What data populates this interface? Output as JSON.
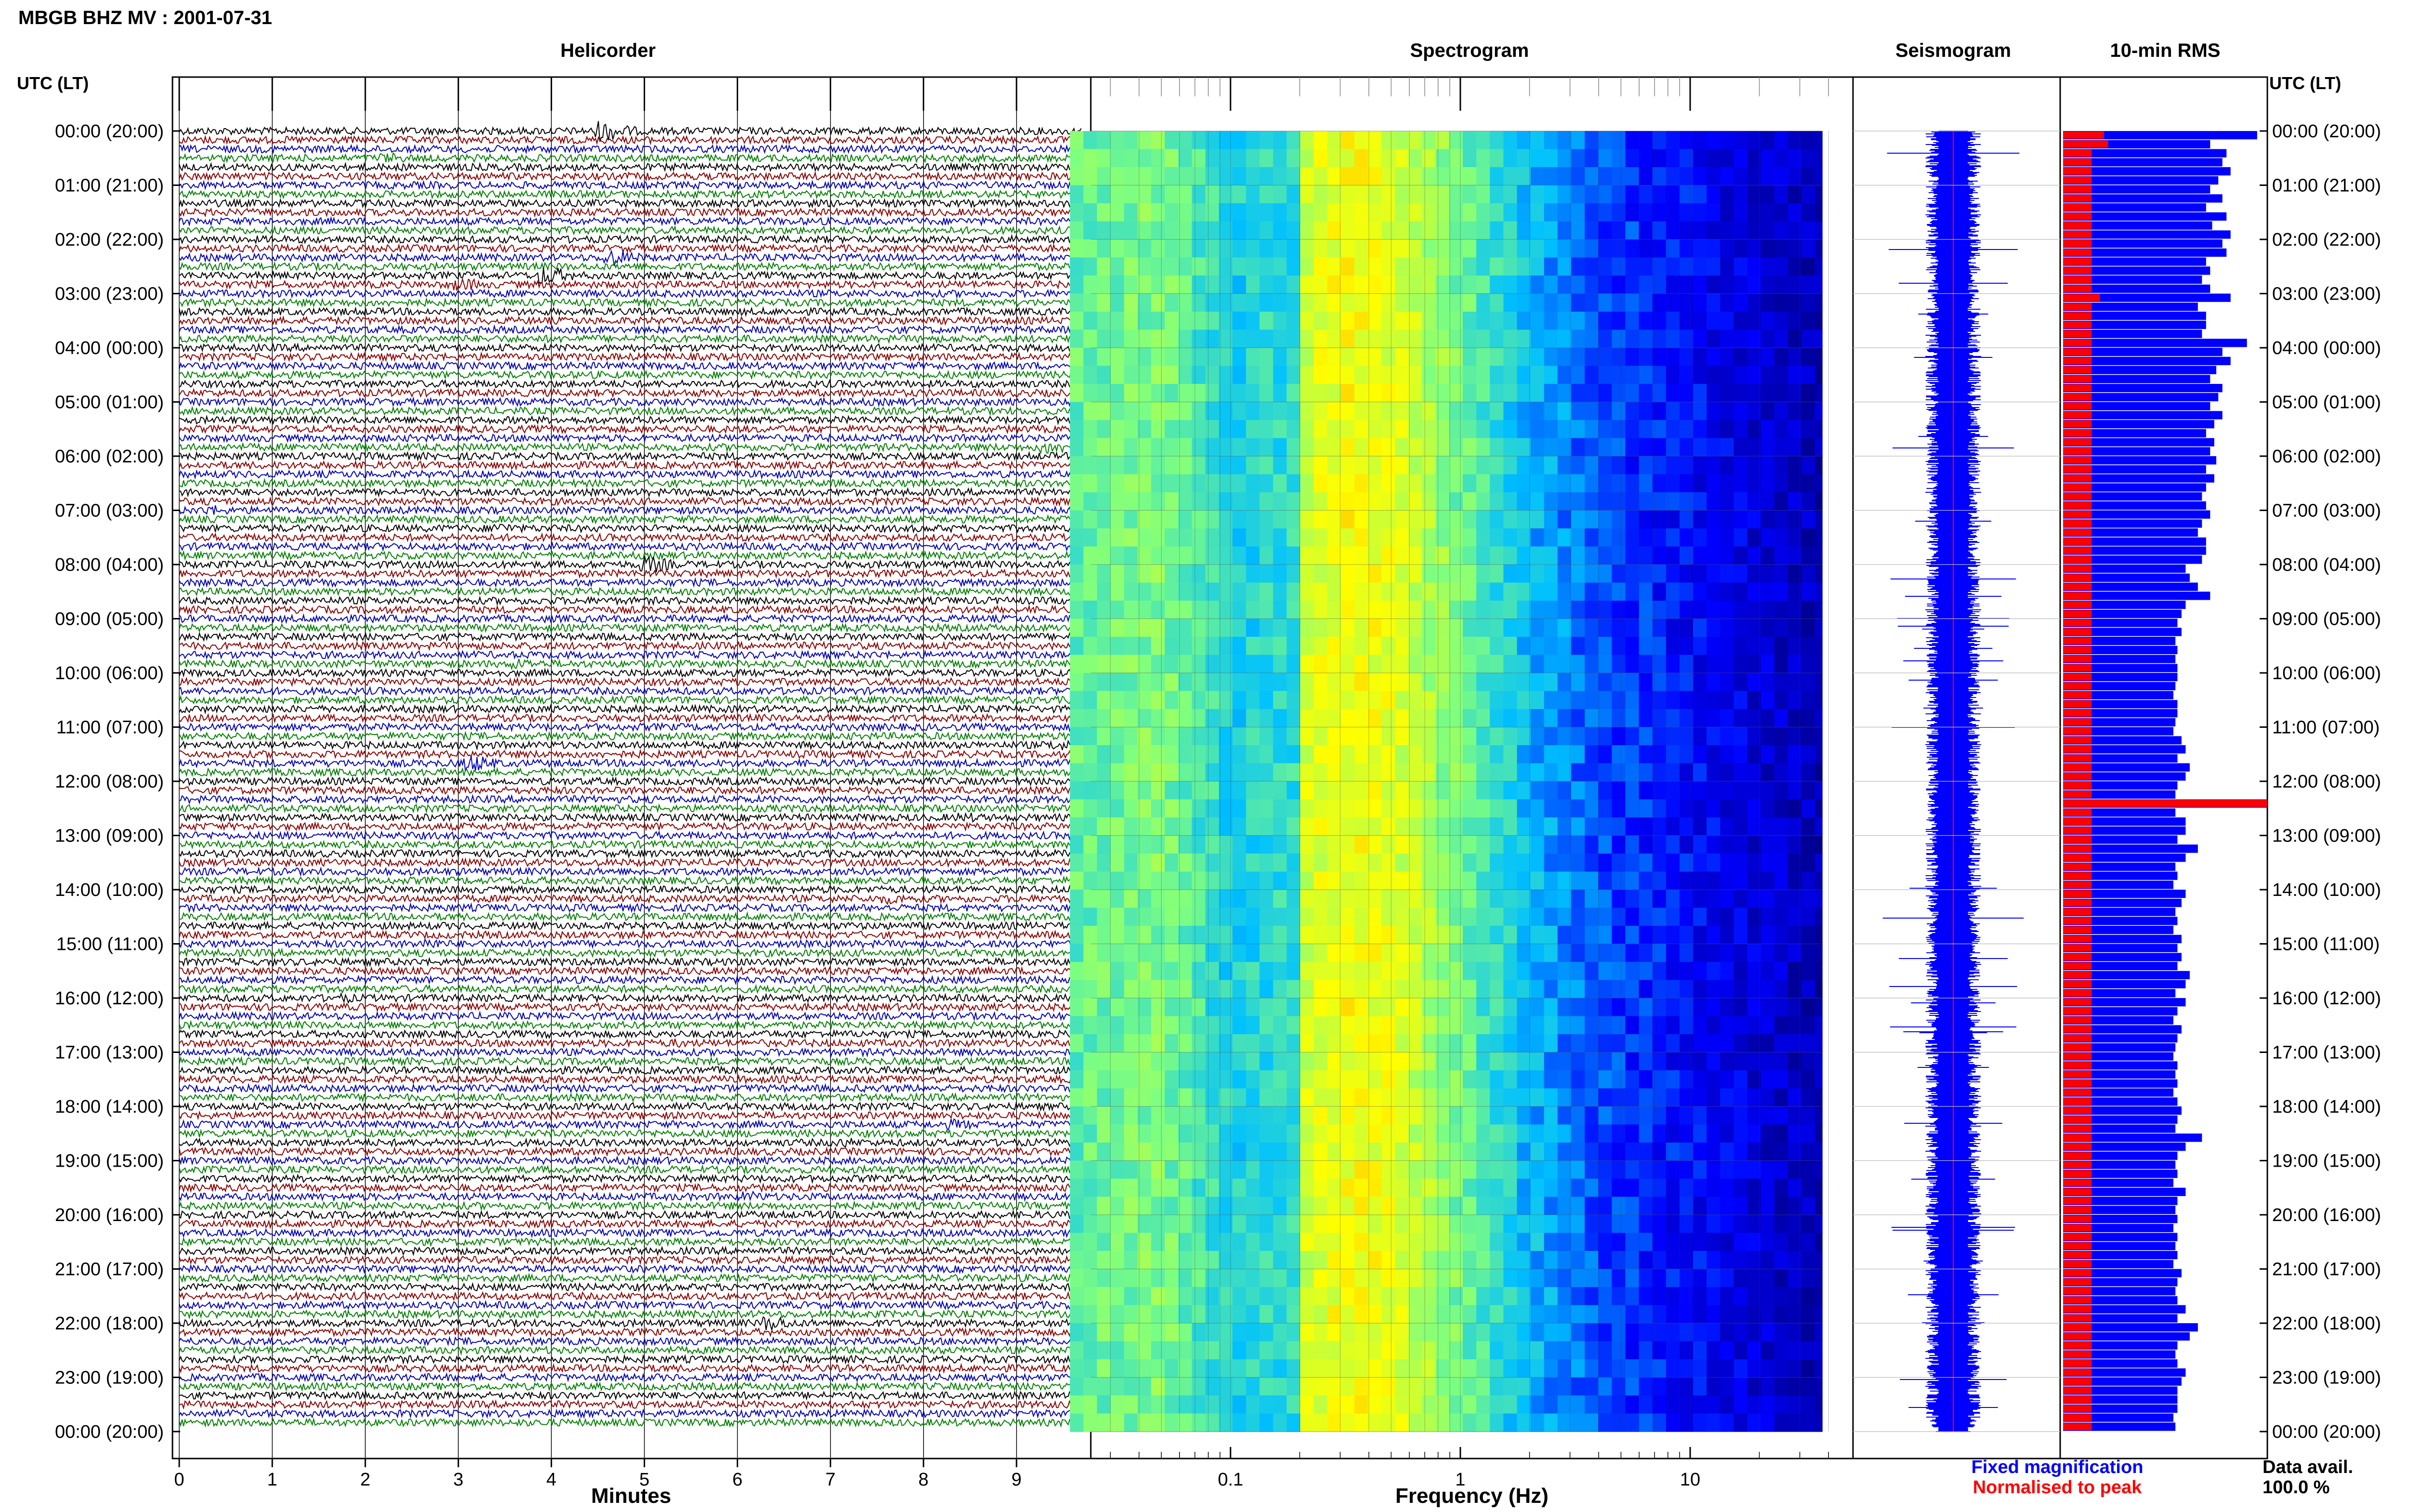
{
  "header": {
    "title": "MBGB BHZ MV : 2001-07-31"
  },
  "panels": {
    "helicorder": "Helicorder",
    "spectrogram": "Spectrogram",
    "seismogram": "Seismogram",
    "rms": "10-min RMS"
  },
  "axis": {
    "time_label": "UTC (LT)",
    "minutes_label": "Minutes",
    "frequency_label": "Frequency (Hz)"
  },
  "legend": {
    "fixed": "Fixed magnification",
    "normalised": "Normalised to peak"
  },
  "data_avail": {
    "label": "Data avail.",
    "value": "100.0 %"
  },
  "colors": {
    "trace_cycle": [
      "#000000",
      "#8b0000",
      "#0000b4",
      "#008000"
    ],
    "rms_fixed": "#0000ff",
    "rms_normalised": "#ff0000",
    "seismogram": "#0000ff",
    "spectrogram_cmap": [
      "#00007f",
      "#0000ff",
      "#00c0ff",
      "#7fff7f",
      "#ffff00",
      "#ff8000"
    ]
  },
  "chart_data": [
    {
      "type": "line",
      "title": "Helicorder",
      "xlabel": "Minutes",
      "xlim": [
        0,
        10
      ],
      "xticks": [
        "0",
        "1",
        "2",
        "3",
        "4",
        "5",
        "6",
        "7",
        "8",
        "9"
      ],
      "ylabel": "UTC (LT)",
      "yticks_left": [
        "00:00 (20:00)",
        "01:00 (21:00)",
        "02:00 (22:00)",
        "03:00 (23:00)",
        "04:00 (00:00)",
        "05:00 (01:00)",
        "06:00 (02:00)",
        "07:00 (03:00)",
        "08:00 (04:00)",
        "09:00 (05:00)",
        "10:00 (06:00)",
        "11:00 (07:00)",
        "12:00 (08:00)",
        "13:00 (09:00)",
        "14:00 (10:00)",
        "15:00 (11:00)",
        "16:00 (12:00)",
        "17:00 (13:00)",
        "18:00 (14:00)",
        "19:00 (15:00)",
        "20:00 (16:00)",
        "21:00 (17:00)",
        "22:00 (18:00)",
        "23:00 (19:00)",
        "00:00 (20:00)"
      ],
      "trace_lines": 144,
      "line_minutes": 10,
      "color_cycle": [
        "black",
        "darkred",
        "blue",
        "green"
      ],
      "events": [
        {
          "line": 0,
          "minute": 4.6,
          "amp": 3.0
        },
        {
          "line": 3,
          "minute": 2.3,
          "amp": 1.5
        },
        {
          "line": 14,
          "minute": 4.7,
          "amp": 2.5
        },
        {
          "line": 16,
          "minute": 4.0,
          "amp": 2.6
        },
        {
          "line": 17,
          "minute": 3.1,
          "amp": 1.8
        },
        {
          "line": 35,
          "minute": 9.4,
          "amp": 2.0
        },
        {
          "line": 42,
          "minute": 0.4,
          "amp": 1.5
        },
        {
          "line": 44,
          "minute": 3.5,
          "amp": 1.6
        },
        {
          "line": 48,
          "minute": 5.1,
          "amp": 2.4
        },
        {
          "line": 59,
          "minute": 3.7,
          "amp": 1.6
        },
        {
          "line": 68,
          "minute": 9.5,
          "amp": 1.5
        },
        {
          "line": 70,
          "minute": 3.2,
          "amp": 2.4
        },
        {
          "line": 76,
          "minute": 8.5,
          "amp": 1.4
        },
        {
          "line": 85,
          "minute": 7.7,
          "amp": 1.5
        },
        {
          "line": 90,
          "minute": 2.7,
          "amp": 1.7
        },
        {
          "line": 96,
          "minute": 1.8,
          "amp": 1.4
        },
        {
          "line": 101,
          "minute": 5.4,
          "amp": 1.3
        },
        {
          "line": 110,
          "minute": 8.4,
          "amp": 1.6
        },
        {
          "line": 112,
          "minute": 7.2,
          "amp": 1.4
        },
        {
          "line": 118,
          "minute": 6.2,
          "amp": 1.5
        },
        {
          "line": 132,
          "minute": 6.4,
          "amp": 2.2
        },
        {
          "line": 141,
          "minute": 9.7,
          "amp": 1.5
        }
      ]
    },
    {
      "type": "heatmap",
      "title": "Spectrogram",
      "xlabel": "Frequency (Hz)",
      "xscale": "log",
      "xticks": [
        "0.1",
        "1",
        "10"
      ],
      "xlim": [
        0.02,
        40
      ],
      "power_profile": [
        {
          "hz": 0.02,
          "level": 0.55
        },
        {
          "hz": 0.05,
          "level": 0.6
        },
        {
          "hz": 0.1,
          "level": 0.45
        },
        {
          "hz": 0.19,
          "level": 0.48
        },
        {
          "hz": 0.2,
          "level": 0.72
        },
        {
          "hz": 0.35,
          "level": 0.8
        },
        {
          "hz": 0.6,
          "level": 0.72
        },
        {
          "hz": 1.0,
          "level": 0.58
        },
        {
          "hz": 2.0,
          "level": 0.4
        },
        {
          "hz": 4.0,
          "level": 0.28
        },
        {
          "hz": 10.0,
          "level": 0.2
        },
        {
          "hz": 40.0,
          "level": 0.08
        }
      ]
    },
    {
      "type": "line",
      "title": "Seismogram"
    },
    {
      "type": "bar",
      "title": "10-min RMS",
      "series": [
        {
          "name": "Fixed magnification",
          "color": "blue",
          "values": [
            0.95,
            0.72,
            0.8,
            0.78,
            0.82,
            0.76,
            0.72,
            0.78,
            0.7,
            0.8,
            0.73,
            0.82,
            0.78,
            0.8,
            0.7,
            0.72,
            0.68,
            0.72,
            0.82,
            0.66,
            0.7,
            0.7,
            0.68,
            0.9,
            0.78,
            0.82,
            0.75,
            0.72,
            0.78,
            0.76,
            0.72,
            0.78,
            0.74,
            0.7,
            0.74,
            0.72,
            0.75,
            0.7,
            0.74,
            0.7,
            0.68,
            0.7,
            0.72,
            0.68,
            0.66,
            0.7,
            0.7,
            0.68,
            0.6,
            0.62,
            0.66,
            0.72,
            0.6,
            0.58,
            0.56,
            0.58,
            0.55,
            0.56,
            0.55,
            0.56,
            0.56,
            0.55,
            0.54,
            0.56,
            0.56,
            0.55,
            0.54,
            0.58,
            0.6,
            0.56,
            0.62,
            0.6,
            0.56,
            0.55,
            1.0,
            0.55,
            0.6,
            0.6,
            0.56,
            0.66,
            0.6,
            0.55,
            0.56,
            0.54,
            0.6,
            0.58,
            0.55,
            0.56,
            0.54,
            0.58,
            0.56,
            0.58,
            0.56,
            0.62,
            0.6,
            0.55,
            0.6,
            0.56,
            0.54,
            0.58,
            0.56,
            0.55,
            0.54,
            0.56,
            0.55,
            0.56,
            0.54,
            0.56,
            0.58,
            0.56,
            0.55,
            0.68,
            0.6,
            0.56,
            0.55,
            0.56,
            0.54,
            0.6,
            0.56,
            0.55,
            0.56,
            0.54,
            0.56,
            0.55,
            0.56,
            0.54,
            0.58,
            0.56,
            0.55,
            0.56,
            0.6,
            0.56,
            0.66,
            0.62,
            0.56,
            0.55,
            0.56,
            0.6,
            0.58,
            0.56,
            0.56,
            0.56,
            0.54,
            0.55
          ]
        },
        {
          "name": "Normalised to peak",
          "color": "red",
          "values": [
            0.2,
            0.22,
            0.14,
            0.14,
            0.14,
            0.14,
            0.14,
            0.14,
            0.14,
            0.14,
            0.14,
            0.14,
            0.14,
            0.14,
            0.14,
            0.14,
            0.14,
            0.14,
            0.18,
            0.14,
            0.14,
            0.14,
            0.14,
            0.14,
            0.14,
            0.14,
            0.14,
            0.14,
            0.14,
            0.14,
            0.14,
            0.14,
            0.14,
            0.14,
            0.14,
            0.14,
            0.14,
            0.14,
            0.14,
            0.14,
            0.14,
            0.14,
            0.14,
            0.14,
            0.14,
            0.14,
            0.14,
            0.14,
            0.14,
            0.14,
            0.14,
            0.14,
            0.14,
            0.14,
            0.14,
            0.14,
            0.14,
            0.14,
            0.14,
            0.14,
            0.14,
            0.14,
            0.14,
            0.14,
            0.14,
            0.14,
            0.14,
            0.14,
            0.14,
            0.14,
            0.14,
            0.14,
            0.14,
            0.14,
            1.0,
            0.14,
            0.14,
            0.14,
            0.14,
            0.14,
            0.14,
            0.14,
            0.14,
            0.14,
            0.14,
            0.14,
            0.14,
            0.14,
            0.14,
            0.14,
            0.14,
            0.14,
            0.14,
            0.14,
            0.14,
            0.14,
            0.14,
            0.14,
            0.14,
            0.14,
            0.14,
            0.14,
            0.14,
            0.14,
            0.14,
            0.14,
            0.14,
            0.14,
            0.14,
            0.14,
            0.14,
            0.14,
            0.14,
            0.14,
            0.14,
            0.14,
            0.14,
            0.14,
            0.14,
            0.14,
            0.14,
            0.14,
            0.14,
            0.14,
            0.14,
            0.14,
            0.14,
            0.14,
            0.14,
            0.14,
            0.14,
            0.14,
            0.14,
            0.14,
            0.14,
            0.14,
            0.14,
            0.14,
            0.14,
            0.14,
            0.14,
            0.14,
            0.14,
            0.14
          ]
        }
      ]
    }
  ]
}
